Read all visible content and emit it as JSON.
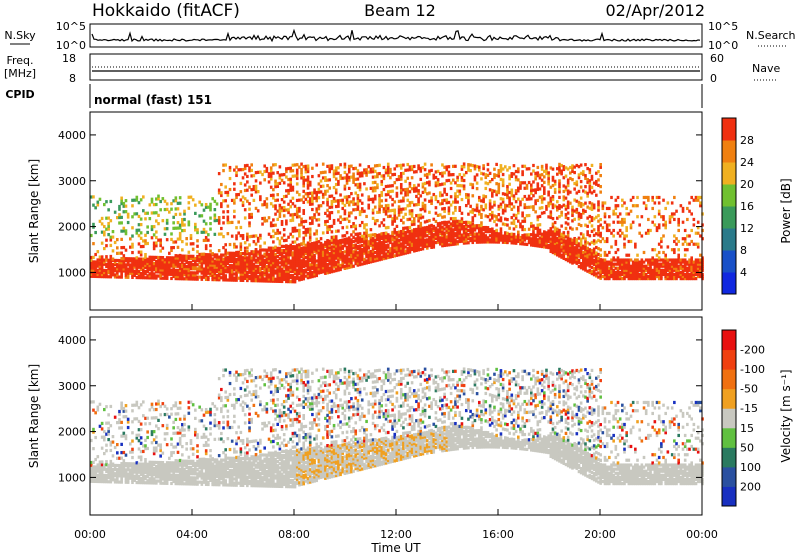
{
  "header": {
    "station": "Hokkaido (fitACF)",
    "beam": "Beam 12",
    "date": "02/Apr/2012"
  },
  "chart_data": [
    {
      "type": "line",
      "name": "noise-panel",
      "left_label": "N.Sky",
      "right_label": "N.Search",
      "left_ticks": [
        "10^5",
        "10^0"
      ],
      "right_ticks": [
        "10^5",
        "10^0"
      ],
      "scale": "log"
    },
    {
      "type": "line",
      "name": "frequency-panel",
      "left_label_1": "Freq.",
      "left_label_2": "[MHz]",
      "right_label": "Nave",
      "left_ticks": [
        18,
        8
      ],
      "right_ticks": [
        60,
        0
      ],
      "ylim": [
        8,
        18
      ]
    },
    {
      "type": "table",
      "name": "cpid-panel",
      "label": "CPID",
      "value": "normal (fast) 151"
    },
    {
      "type": "heatmap",
      "name": "power-panel",
      "ylabel": "Slant Range [km]",
      "yticks": [
        1000,
        2000,
        3000,
        4000
      ],
      "ylim": [
        180,
        4500
      ],
      "colorbar": {
        "label": "Power [dB]",
        "ticks": [
          4,
          8,
          12,
          16,
          20,
          24,
          28
        ],
        "range": [
          0,
          30
        ],
        "colors": [
          "#1028e0",
          "#1850c8",
          "#2a7a8a",
          "#3a9a5a",
          "#70c030",
          "#f0b020",
          "#f08010",
          "#f03010"
        ]
      }
    },
    {
      "type": "heatmap",
      "name": "velocity-panel",
      "ylabel": "Slant Range [km]",
      "yticks": [
        1000,
        2000,
        3000,
        4000
      ],
      "ylim": [
        180,
        4500
      ],
      "xlabel": "Time UT",
      "xticks": [
        "00:00",
        "04:00",
        "08:00",
        "12:00",
        "16:00",
        "20:00",
        "00:00"
      ],
      "xlim_hours": [
        0,
        24
      ],
      "colorbar": {
        "label": "Velocity [m s⁻¹]",
        "ticks": [
          "200",
          "100",
          "50",
          "15",
          "-15",
          "-50",
          "-100",
          "-200"
        ],
        "colors": [
          "#1830c0",
          "#2a50a0",
          "#2a7a60",
          "#60c040",
          "#c8c8c0",
          "#f0a020",
          "#f07010",
          "#f04010",
          "#e81010"
        ]
      },
      "ground_scatter_color": "#c8c8c0"
    }
  ]
}
